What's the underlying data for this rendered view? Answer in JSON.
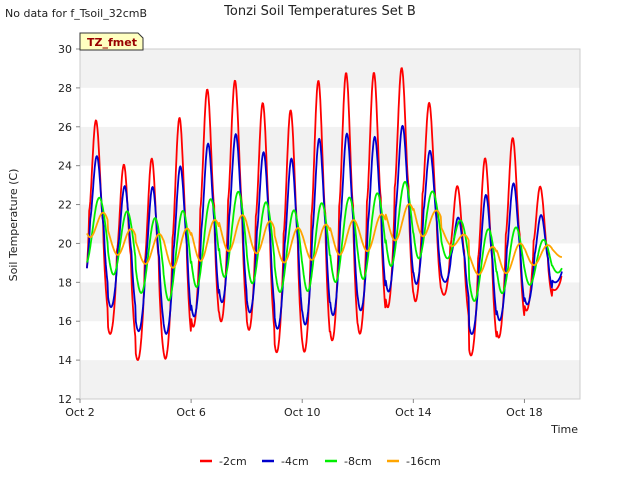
{
  "corner_note": "No data for f_Tsoil_32cmB",
  "tag_label": "TZ_fmet",
  "chart_data": {
    "type": "line",
    "title": "Tonzi Soil Temperatures Set B",
    "xlabel": "Time",
    "ylabel": "Soil Temperature (C)",
    "xlim": [
      2,
      20
    ],
    "ylim": [
      12,
      30
    ],
    "xticks": [
      {
        "x": 2,
        "label": "Oct 2"
      },
      {
        "x": 6,
        "label": "Oct 6"
      },
      {
        "x": 10,
        "label": "Oct 10"
      },
      {
        "x": 14,
        "label": "Oct 14"
      },
      {
        "x": 18,
        "label": "Oct 18"
      }
    ],
    "yticks": [
      12,
      14,
      16,
      18,
      20,
      22,
      24,
      26,
      28,
      30
    ],
    "grid": "horizontal bands",
    "legend_position": "bottom",
    "day_start": 2,
    "daily": [
      {
        "day": 2,
        "min2": 16.9,
        "max2": 27.2,
        "min4": 17.9,
        "max4": 25.1,
        "min8": 19.0,
        "max8": 22.6,
        "min16": 20.5,
        "max16": 22.0
      },
      {
        "day": 3,
        "min2": 15.4,
        "max2": 24.2,
        "min4": 16.8,
        "max4": 23.1,
        "min8": 18.5,
        "max8": 21.9,
        "min16": 19.5,
        "max16": 21.0
      },
      {
        "day": 4,
        "min2": 14.0,
        "max2": 23.7,
        "min4": 15.5,
        "max4": 22.6,
        "min8": 17.5,
        "max8": 21.2,
        "min16": 19.0,
        "max16": 20.4
      },
      {
        "day": 5,
        "min2": 14.0,
        "max2": 26.0,
        "min4": 15.3,
        "max4": 23.6,
        "min8": 17.0,
        "max8": 21.5,
        "min16": 18.7,
        "max16": 20.6
      },
      {
        "day": 6,
        "min2": 15.7,
        "max2": 27.6,
        "min4": 16.2,
        "max4": 24.8,
        "min8": 17.7,
        "max8": 22.0,
        "min16": 19.0,
        "max16": 21.0
      },
      {
        "day": 7,
        "min2": 16.0,
        "max2": 28.7,
        "min4": 17.0,
        "max4": 25.9,
        "min8": 18.3,
        "max8": 22.8,
        "min16": 19.6,
        "max16": 21.5
      },
      {
        "day": 8,
        "min2": 15.6,
        "max2": 27.6,
        "min4": 16.5,
        "max4": 25.0,
        "min8": 18.0,
        "max8": 22.4,
        "min16": 19.6,
        "max16": 21.4
      },
      {
        "day": 9,
        "min2": 14.4,
        "max2": 26.3,
        "min4": 15.6,
        "max4": 24.0,
        "min8": 17.5,
        "max8": 21.6,
        "min16": 19.0,
        "max16": 20.8
      },
      {
        "day": 10,
        "min2": 14.4,
        "max2": 28.2,
        "min4": 15.8,
        "max4": 25.2,
        "min8": 17.5,
        "max8": 21.9,
        "min16": 19.1,
        "max16": 20.8
      },
      {
        "day": 11,
        "min2": 15.0,
        "max2": 28.8,
        "min4": 16.3,
        "max4": 25.8,
        "min8": 18.0,
        "max8": 22.4,
        "min16": 19.4,
        "max16": 21.2
      },
      {
        "day": 12,
        "min2": 15.3,
        "max2": 28.7,
        "min4": 16.5,
        "max4": 25.3,
        "min8": 18.1,
        "max8": 22.3,
        "min16": 19.5,
        "max16": 21.2
      },
      {
        "day": 13,
        "min2": 16.7,
        "max2": 29.0,
        "min4": 17.5,
        "max4": 25.9,
        "min8": 18.8,
        "max8": 23.1,
        "min16": 20.1,
        "max16": 21.9
      },
      {
        "day": 14,
        "min2": 17.0,
        "max2": 29.1,
        "min4": 17.9,
        "max4": 26.4,
        "min8": 19.2,
        "max8": 23.3,
        "min16": 20.4,
        "max16": 22.2
      },
      {
        "day": 15,
        "min2": 17.5,
        "max2": 22.6,
        "min4": 18.2,
        "max4": 21.0,
        "min8": 19.5,
        "max8": 21.5,
        "min16": 20.2,
        "max16": 21.0
      },
      {
        "day": 16,
        "min2": 14.2,
        "max2": 23.8,
        "min4": 15.3,
        "max4": 22.1,
        "min8": 17.0,
        "max8": 20.6,
        "min16": 18.4,
        "max16": 19.7
      },
      {
        "day": 17,
        "min2": 15.1,
        "max2": 25.8,
        "min4": 16.0,
        "max4": 23.4,
        "min8": 17.4,
        "max8": 21.0,
        "min16": 18.4,
        "max16": 20.0
      },
      {
        "day": 18,
        "min2": 16.5,
        "max2": 24.5,
        "min4": 16.8,
        "max4": 22.4,
        "min8": 17.8,
        "max8": 20.5,
        "min16": 18.8,
        "max16": 20.0
      },
      {
        "day": 19,
        "min2": 17.6,
        "max2": 19.0,
        "min4": 18.0,
        "max4": 19.3,
        "min8": 18.5,
        "max8": 19.6,
        "min16": 19.3,
        "max16": 19.8
      }
    ],
    "series": [
      {
        "name": "-2cm",
        "key": "2",
        "color": "#ff0000",
        "phase": 0.58
      },
      {
        "name": "-4cm",
        "key": "4",
        "color": "#0000cc",
        "phase": 0.61
      },
      {
        "name": "-8cm",
        "key": "8",
        "color": "#00ee00",
        "phase": 0.7
      },
      {
        "name": "-16cm",
        "key": "16",
        "color": "#ffa500",
        "phase": 0.85
      }
    ]
  }
}
